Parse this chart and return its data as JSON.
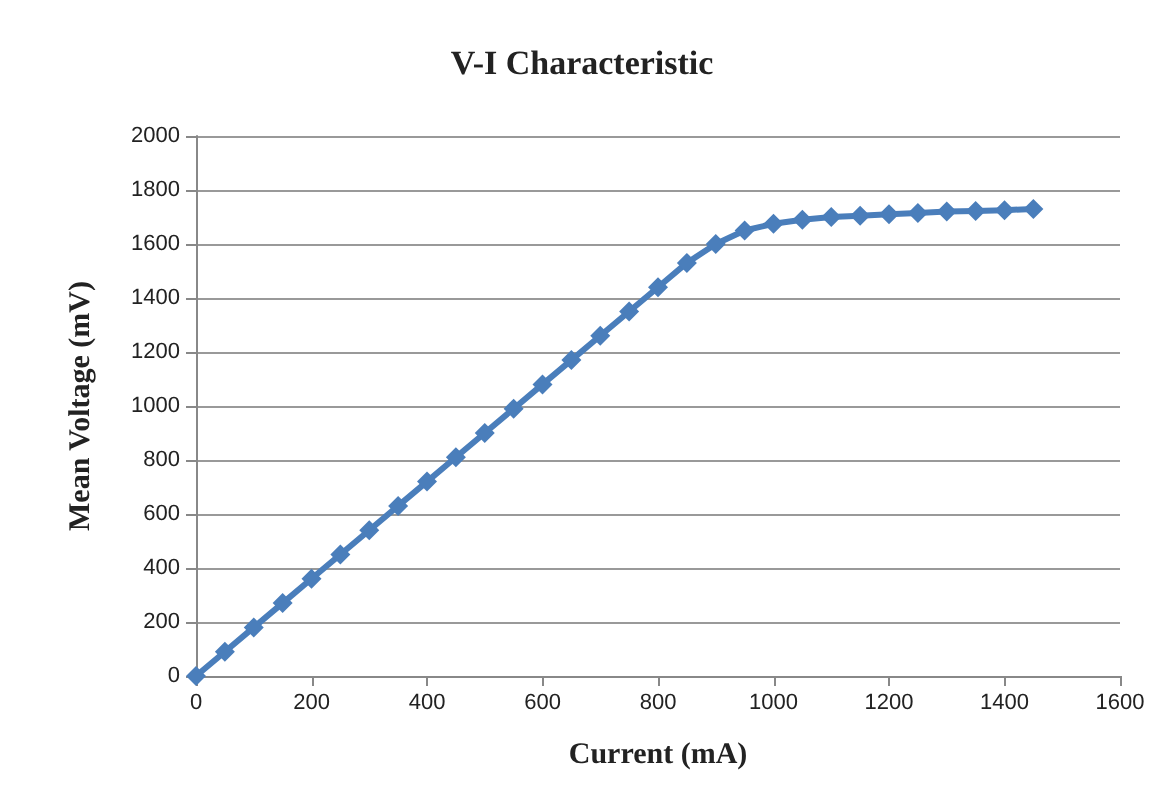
{
  "chart_data": {
    "type": "line",
    "title": "V-I Characteristic",
    "xlabel": "Current (mA)",
    "ylabel": "Mean Voltage (mV)",
    "x": [
      0,
      50,
      100,
      150,
      200,
      250,
      300,
      350,
      400,
      450,
      500,
      550,
      600,
      650,
      700,
      750,
      800,
      850,
      900,
      950,
      1000,
      1050,
      1100,
      1150,
      1200,
      1250,
      1300,
      1350,
      1400,
      1450
    ],
    "series": [
      {
        "color": "#4a7ebb",
        "values": [
          0,
          90,
          180,
          270,
          360,
          450,
          540,
          630,
          720,
          810,
          900,
          990,
          1080,
          1170,
          1260,
          1350,
          1440,
          1530,
          1600,
          1650,
          1675,
          1690,
          1700,
          1705,
          1710,
          1715,
          1720,
          1722,
          1725,
          1730
        ]
      }
    ],
    "xlim": [
      0,
      1600
    ],
    "xticks": [
      0,
      200,
      400,
      600,
      800,
      1000,
      1200,
      1400,
      1600
    ],
    "ylim": [
      0,
      2000
    ],
    "yticks": [
      0,
      200,
      400,
      600,
      800,
      1000,
      1200,
      1400,
      1600,
      1800,
      2000
    ],
    "grid": "y",
    "marker": "diamond",
    "line_style": "solid"
  }
}
